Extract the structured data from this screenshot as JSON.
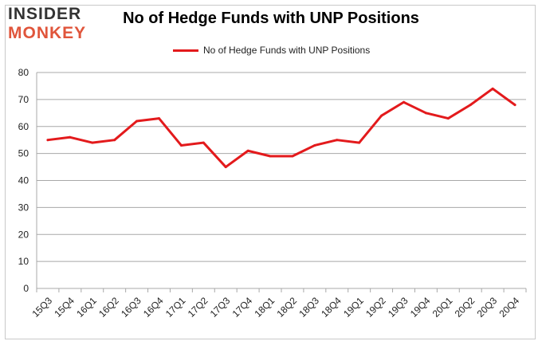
{
  "logo": {
    "line1": "INSIDER",
    "line2": "MONKEY"
  },
  "chart_data": {
    "type": "line",
    "title": "No of Hedge Funds with UNP Positions",
    "xlabel": "",
    "ylabel": "",
    "categories": [
      "15Q3",
      "15Q4",
      "16Q1",
      "16Q2",
      "16Q3",
      "16Q4",
      "17Q1",
      "17Q2",
      "17Q3",
      "17Q4",
      "18Q1",
      "18Q2",
      "18Q3",
      "18Q4",
      "19Q1",
      "19Q2",
      "19Q3",
      "19Q4",
      "20Q1",
      "20Q2",
      "20Q3",
      "20Q4"
    ],
    "series": [
      {
        "name": "No of Hedge Funds with UNP Positions",
        "color": "#e31a1c",
        "values": [
          55,
          56,
          54,
          55,
          62,
          63,
          53,
          54,
          45,
          51,
          49,
          49,
          53,
          55,
          54,
          64,
          69,
          65,
          63,
          68,
          74,
          68
        ]
      }
    ],
    "ylim": [
      0,
      80
    ],
    "yticks": [
      0,
      10,
      20,
      30,
      40,
      50,
      60,
      70,
      80
    ],
    "grid": true,
    "legend_position": "top-center"
  }
}
